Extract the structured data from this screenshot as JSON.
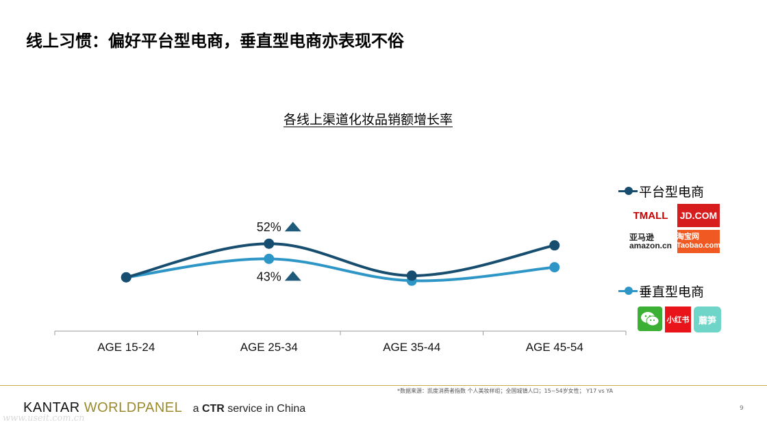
{
  "page": {
    "title": "线上习惯：偏好平台型电商，垂直型电商亦表现不俗",
    "source_note": "*数据来源：凯度消费者指数 个人美妆样组；全国城镇人口；15~54岁女性； Y17 vs YA",
    "page_number": "9",
    "brand_kantar": "KANTAR",
    "brand_worldpanel": "WORLDPANEL",
    "brand_tagline_prefix": "a",
    "brand_tagline_ctr": "CTR",
    "brand_tagline_suffix": "service in China",
    "watermark": "www.useit.com.cn"
  },
  "legend": {
    "platform_label": "平台型电商",
    "vertical_label": "垂直型电商",
    "platform_logos": [
      "TMALL",
      "JD.COM",
      "亚马逊 amazon.cn",
      "淘宝网 Taobao.com"
    ],
    "vertical_logos": [
      "wechat-icon",
      "小红书",
      "蘑笋"
    ]
  },
  "colors": {
    "platform": "#174d6e",
    "vertical": "#2e96c6",
    "axis": "#999999",
    "triangle": "#1f5a7a"
  },
  "chart_data": {
    "type": "line",
    "title": "各线上渠道化妆品销额增长率",
    "categories": [
      "AGE 15-24",
      "AGE 25-34",
      "AGE 35-44",
      "AGE 45-54"
    ],
    "series": [
      {
        "name": "平台型电商",
        "values": [
          32,
          52,
          33,
          51
        ]
      },
      {
        "name": "垂直型电商",
        "values": [
          32,
          43,
          30,
          38
        ]
      }
    ],
    "data_labels": [
      {
        "series": 0,
        "index": 1,
        "text": "52%",
        "position": "above",
        "marker": "up-triangle"
      },
      {
        "series": 1,
        "index": 1,
        "text": "43%",
        "position": "below",
        "marker": "up-triangle"
      }
    ],
    "ylim": [
      0,
      140
    ],
    "grid": false,
    "y_axis_visible": false,
    "legend_placement": "right"
  }
}
